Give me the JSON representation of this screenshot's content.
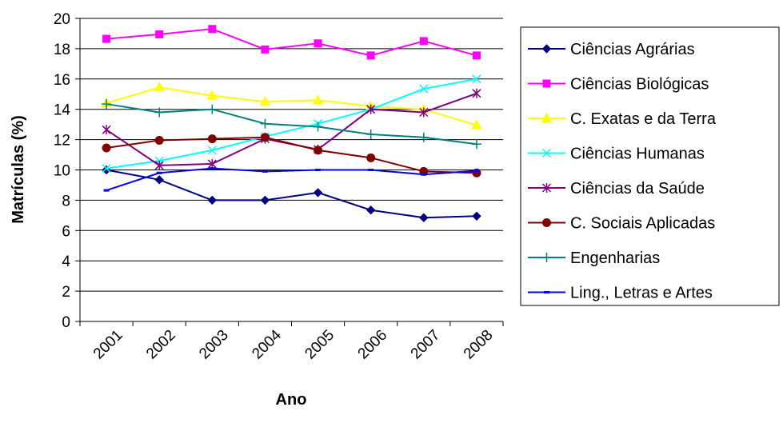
{
  "chart_data": {
    "type": "line",
    "xlabel": "Ano",
    "ylabel": "Matrículas (%)",
    "categories": [
      "2001",
      "2002",
      "2003",
      "2004",
      "2005",
      "2006",
      "2007",
      "2008"
    ],
    "ylim": [
      0,
      20
    ],
    "yticks": [
      0,
      2,
      4,
      6,
      8,
      10,
      12,
      14,
      16,
      18,
      20
    ],
    "grid": true,
    "legend_position": "right",
    "series": [
      {
        "name": "Ciências Agrárias",
        "color": "#000080",
        "marker": "diamond",
        "values": [
          10.0,
          9.35,
          8.0,
          8.0,
          8.5,
          7.35,
          6.85,
          6.95
        ]
      },
      {
        "name": "Ciências Biológicas",
        "color": "#FF00FF",
        "marker": "square",
        "values": [
          18.65,
          18.95,
          19.3,
          17.95,
          18.35,
          17.55,
          18.5,
          17.55
        ]
      },
      {
        "name": "C. Exatas e da Terra",
        "color": "#FFFF00",
        "marker": "triangle",
        "values": [
          14.4,
          15.45,
          14.9,
          14.5,
          14.6,
          14.2,
          14.0,
          12.95
        ]
      },
      {
        "name": "Ciências Humanas",
        "color": "#00FFFF",
        "marker": "x",
        "values": [
          10.1,
          10.6,
          11.3,
          12.2,
          13.05,
          14.0,
          15.35,
          16.0
        ]
      },
      {
        "name": "Ciências da Saúde",
        "color": "#800080",
        "marker": "star",
        "values": [
          12.65,
          10.3,
          10.4,
          12.05,
          11.35,
          14.0,
          13.8,
          15.05
        ]
      },
      {
        "name": "C. Sociais Aplicadas",
        "color": "#800000",
        "marker": "circle",
        "values": [
          11.45,
          11.95,
          12.05,
          12.15,
          11.3,
          10.8,
          9.9,
          9.8
        ]
      },
      {
        "name": "Engenharias",
        "color": "#008080",
        "marker": "plus",
        "values": [
          14.35,
          13.8,
          14.0,
          13.05,
          12.85,
          12.35,
          12.15,
          11.7
        ]
      },
      {
        "name": "Ling., Letras e Artes",
        "color": "#0000FF",
        "marker": "dash",
        "values": [
          8.65,
          9.8,
          10.1,
          9.9,
          10.0,
          10.0,
          9.7,
          9.95
        ]
      }
    ]
  }
}
